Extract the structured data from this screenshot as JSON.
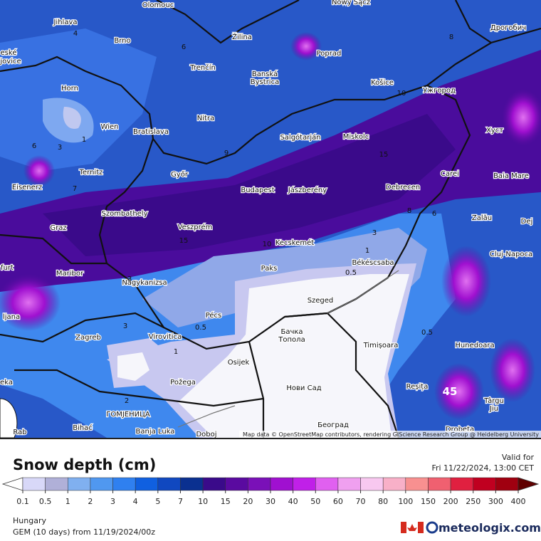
{
  "map": {
    "cities": [
      "Olomouc",
      "Nowy Sącz",
      "Jihlava",
      "Brno",
      "Žilina",
      "Poprad",
      "Дрогобич",
      "eské",
      "jovice",
      "Trenčín",
      "Banská",
      "Bystrica",
      "Košice",
      "Ужгород",
      "Horn",
      "Nitra",
      "Wien",
      "Bratislava",
      "Salgótarján",
      "Miskolc",
      "Хуст",
      "Ternitz",
      "Győr",
      "Carei",
      "Baia Mare",
      "Eisenerz",
      "Budapest",
      "Jászberény",
      "Debrecen",
      "Szombathely",
      "Zalău",
      "Graz",
      "Veszprém",
      "Dej",
      "Kecskemét",
      "Cluj-Napoca",
      "furt",
      "Paks",
      "Békéscsaba",
      "Maribor",
      "Nagykanizsa",
      "Szeged",
      "ljana",
      "Pécs",
      "Zagreb",
      "Virovitica",
      "Бачка",
      "Топола",
      "Hunedoara",
      "Timișoara",
      "Osijek",
      "Požega",
      "Reșița",
      "Нови Сад",
      "eka",
      "Târgu",
      "Jiu",
      "ГОМЈЕНИЦА",
      "Banja Luka",
      "Doboj",
      "Београд",
      "Drobeta",
      "Bihać",
      "Rab"
    ],
    "contour_labels": [
      4,
      6,
      8,
      1,
      3,
      9,
      10,
      15,
      3,
      1,
      0.5,
      0.5,
      3,
      1,
      0.5,
      45,
      2,
      6,
      7,
      15,
      10,
      3,
      8,
      6
    ],
    "attribution": "Map data © OpenStreetMap contributors, rendering GIScience Research Group @ Heidelberg University"
  },
  "legend": {
    "title": "Snow depth (cm)",
    "ticks": [
      0.1,
      0.5,
      1,
      2,
      3,
      4,
      5,
      7,
      10,
      15,
      20,
      30,
      40,
      50,
      60,
      70,
      80,
      100,
      150,
      200,
      250,
      300,
      400
    ],
    "colors": [
      "#ffffff",
      "#d8d8f8",
      "#b0b0d8",
      "#80b0f0",
      "#5098f0",
      "#2f80f0",
      "#1060e0",
      "#1048c0",
      "#0a3090",
      "#3a0a8a",
      "#5a0aa0",
      "#7a10b8",
      "#a010d0",
      "#c020e8",
      "#e060f0",
      "#f0a0f0",
      "#f8c8f0",
      "#f8b0c8",
      "#f89090",
      "#f06070",
      "#e02040",
      "#c00020",
      "#a00010",
      "#600000"
    ]
  },
  "valid": {
    "label": "Valid for",
    "time": "Fri 11/22/2024, 13:00 CET"
  },
  "footer": {
    "region": "Hungary",
    "model": "GEM (10 days) from 11/19/2024/00z",
    "brand": "meteologix.com"
  }
}
